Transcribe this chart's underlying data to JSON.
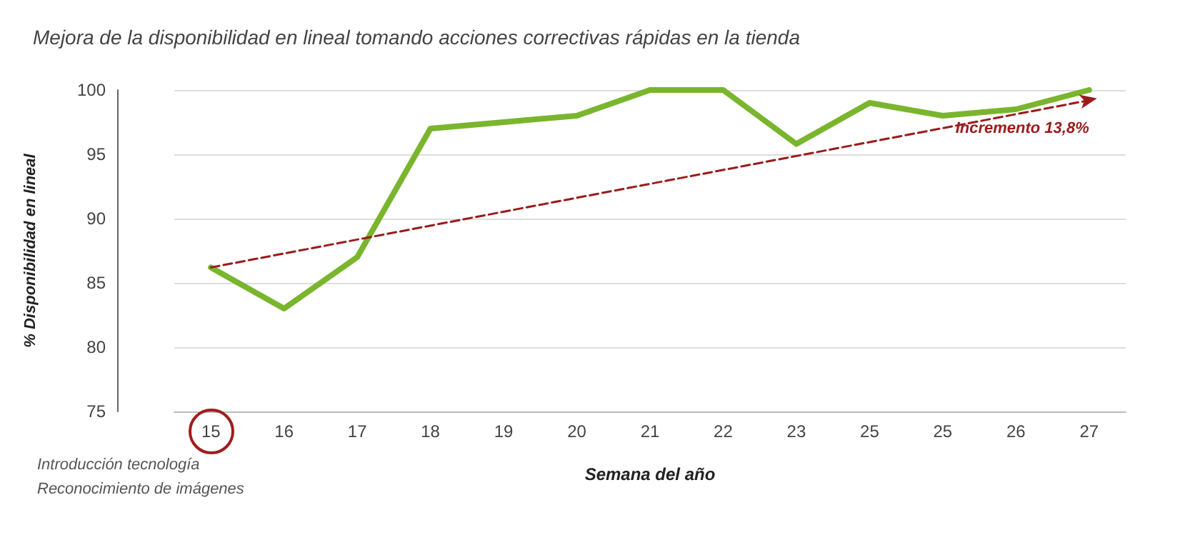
{
  "chart_data": {
    "type": "line",
    "title": "Mejora de la disponibilidad en lineal tomando acciones correctivas rápidas en la tienda",
    "xlabel": "Semana del año",
    "ylabel": "% Disponibilidad en lineal",
    "categories": [
      "15",
      "16",
      "17",
      "18",
      "19",
      "20",
      "21",
      "22",
      "23",
      "25",
      "25",
      "26",
      "27"
    ],
    "series": [
      {
        "color": "#7ab52e",
        "values": [
          86.2,
          83,
          87,
          97,
          97.5,
          98,
          100,
          100,
          95.8,
          99,
          98,
          98.5,
          100
        ]
      },
      {
        "type": "line",
        "x": [
          "15",
          "27"
        ],
        "values": [
          86.2,
          99.2
        ],
        "color": "#9b1b1b",
        "line_style": "dashed"
      }
    ],
    "ylim": [
      75,
      100
    ],
    "yticks": [
      75,
      80,
      85,
      90,
      95,
      100
    ],
    "grid": "y",
    "line_style": "solid",
    "annotations": [
      "Incremento 13,8%",
      "Introducción tecnología\nReconocimiento de imágenes"
    ]
  }
}
